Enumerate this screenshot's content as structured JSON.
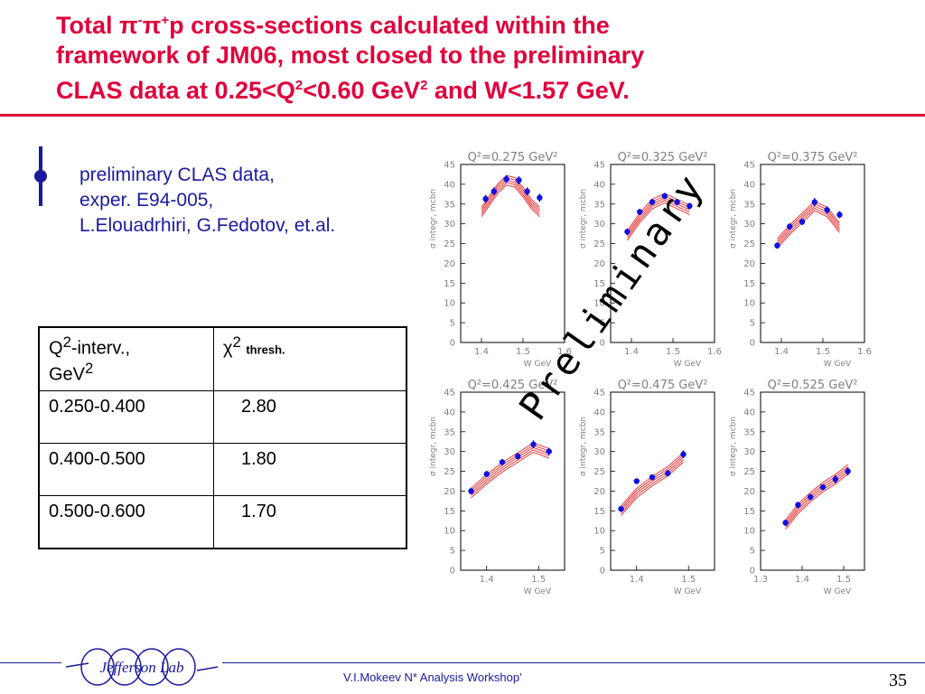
{
  "title": {
    "line1_pre": "Total ",
    "pi": "π",
    "minus": "-",
    "plus": "+",
    "line1_post": "p cross-sections calculated within the",
    "line2": "framework of JM06, most closed to the preliminary",
    "line3_a": "CLAS data at 0.25<Q",
    "sup2": "2",
    "line3_b": "<0.60 GeV",
    "line3_c": " and W<1.57 GeV."
  },
  "legend": {
    "line1": "preliminary CLAS data,",
    "line2": "exper. E94-005,",
    "line3": "L.Elouadrhiri, G.Fedotov, et.al.",
    "marker_color": "#1a1aa0"
  },
  "table": {
    "header_col1_a": "Q",
    "header_col1_sup": "2",
    "header_col1_b": "-interv.,",
    "header_col1_c": "GeV",
    "header_col1_sup2": "2",
    "header_col2_chi": "χ",
    "header_col2_sup": "2",
    "header_col2_sub": "thresh.",
    "rows": [
      {
        "interval": "0.250-0.400",
        "chi2": "2.80"
      },
      {
        "interval": "0.400-0.500",
        "chi2": "1.80"
      },
      {
        "interval": "0.500-0.600",
        "chi2": "1.70"
      }
    ]
  },
  "watermark": "Preliminary",
  "footer": {
    "logo_text": "Jefferson Lab",
    "credit": "V.I.Mokeev  N* Analysis Workshop'",
    "page": "35"
  },
  "colors": {
    "title": "#e0003c",
    "data_points": "#1010e0",
    "curves": "#e00000",
    "axis_labels": "#808080"
  },
  "chart_data": [
    {
      "type": "scatter",
      "title": "Q²=0.275 GeV²",
      "xlabel": "W GeV",
      "ylabel": "σ integr, mcbn",
      "xlim": [
        1.35,
        1.6
      ],
      "ylim": [
        0,
        45
      ],
      "xticks": [
        "1.4",
        "1.5",
        "1.6"
      ],
      "yticks": [
        "0",
        "5",
        "10",
        "15",
        "20",
        "25",
        "30",
        "35",
        "40",
        "45"
      ],
      "x": [
        1.41,
        1.43,
        1.46,
        1.49,
        1.51,
        1.54
      ],
      "y": [
        36.3,
        38.2,
        41.3,
        41.0,
        38.2,
        36.6
      ],
      "yerr": [
        1.0,
        1.0,
        1.0,
        1.0,
        1.0,
        1.0
      ],
      "curve_x": [
        1.4,
        1.42,
        1.44,
        1.46,
        1.48,
        1.5,
        1.52,
        1.54
      ],
      "curve_y": [
        33.0,
        36.0,
        39.0,
        41.0,
        40.5,
        38.0,
        35.0,
        33.0
      ]
    },
    {
      "type": "scatter",
      "title": "Q²=0.325 GeV²",
      "xlabel": "W GeV",
      "ylabel": "σ integr, mcbn",
      "xlim": [
        1.35,
        1.6
      ],
      "ylim": [
        0,
        45
      ],
      "xticks": [
        "1.4",
        "1.5",
        "1.6"
      ],
      "yticks": [
        "0",
        "5",
        "10",
        "15",
        "20",
        "25",
        "30",
        "35",
        "40",
        "45"
      ],
      "x": [
        1.39,
        1.42,
        1.45,
        1.48,
        1.51,
        1.54
      ],
      "y": [
        28.0,
        33.0,
        35.5,
        37.0,
        35.5,
        34.5
      ],
      "yerr": [
        0.8,
        0.8,
        0.8,
        0.8,
        0.8,
        0.8
      ],
      "curve_x": [
        1.39,
        1.42,
        1.45,
        1.48,
        1.51,
        1.54
      ],
      "curve_y": [
        27.0,
        31.5,
        35.0,
        36.5,
        35.0,
        33.5
      ]
    },
    {
      "type": "scatter",
      "title": "Q²=0.375 GeV²",
      "xlabel": "W GeV",
      "ylabel": "σ integr, mcbn",
      "xlim": [
        1.35,
        1.6
      ],
      "ylim": [
        0,
        45
      ],
      "xticks": [
        "1.4",
        "1.5",
        "1.6"
      ],
      "yticks": [
        "0",
        "5",
        "10",
        "15",
        "20",
        "25",
        "30",
        "35",
        "40",
        "45"
      ],
      "x": [
        1.39,
        1.42,
        1.45,
        1.48,
        1.51,
        1.54
      ],
      "y": [
        24.5,
        29.3,
        30.5,
        35.5,
        33.5,
        32.3
      ],
      "yerr": [
        0.8,
        0.8,
        0.8,
        1.0,
        0.9,
        0.9
      ],
      "curve_x": [
        1.39,
        1.42,
        1.45,
        1.48,
        1.51,
        1.54
      ],
      "curve_y": [
        25.0,
        28.5,
        31.5,
        34.5,
        33.0,
        29.0
      ]
    },
    {
      "type": "scatter",
      "title": "Q²=0.425 GeV²",
      "xlabel": "W GeV",
      "ylabel": "σ integr, mcbn",
      "xlim": [
        1.35,
        1.55
      ],
      "ylim": [
        0,
        45
      ],
      "xticks": [
        "1.4",
        "1.5"
      ],
      "yticks": [
        "0",
        "5",
        "10",
        "15",
        "20",
        "25",
        "30",
        "35",
        "40",
        "45"
      ],
      "x": [
        1.37,
        1.4,
        1.43,
        1.46,
        1.49,
        1.52
      ],
      "y": [
        20.0,
        24.3,
        27.3,
        28.8,
        31.8,
        30.0
      ],
      "yerr": [
        0.8,
        0.8,
        0.8,
        0.8,
        1.0,
        0.9
      ],
      "curve_x": [
        1.37,
        1.4,
        1.43,
        1.46,
        1.49,
        1.52
      ],
      "curve_y": [
        19.5,
        23.0,
        26.0,
        28.5,
        31.0,
        29.5
      ]
    },
    {
      "type": "scatter",
      "title": "Q²=0.475 GeV²",
      "xlabel": "W GeV",
      "ylabel": "σ integr, mcbn",
      "xlim": [
        1.35,
        1.55
      ],
      "ylim": [
        0,
        45
      ],
      "xticks": [
        "1.4",
        "1.5"
      ],
      "yticks": [
        "0",
        "5",
        "10",
        "15",
        "20",
        "25",
        "30",
        "35",
        "40",
        "45"
      ],
      "x": [
        1.37,
        1.4,
        1.43,
        1.46,
        1.49
      ],
      "y": [
        15.5,
        22.5,
        23.5,
        24.5,
        29.3
      ],
      "yerr": [
        0.6,
        0.7,
        0.7,
        0.8,
        1.0
      ],
      "curve_x": [
        1.37,
        1.4,
        1.43,
        1.46,
        1.49
      ],
      "curve_y": [
        15.0,
        19.5,
        22.5,
        25.0,
        28.5
      ]
    },
    {
      "type": "scatter",
      "title": "Q²=0.525 GeV²",
      "xlabel": "W GeV",
      "ylabel": "σ integr, mcbn",
      "xlim": [
        1.3,
        1.55
      ],
      "ylim": [
        0,
        45
      ],
      "xticks": [
        "1.3",
        "1.4",
        "1.5"
      ],
      "yticks": [
        "0",
        "5",
        "10",
        "15",
        "20",
        "25",
        "30",
        "35",
        "40",
        "45"
      ],
      "x": [
        1.36,
        1.39,
        1.42,
        1.45,
        1.48,
        1.51
      ],
      "y": [
        12.0,
        16.5,
        18.5,
        21.0,
        23.0,
        25.0
      ],
      "yerr": [
        0.8,
        0.8,
        0.8,
        0.8,
        1.0,
        1.0
      ],
      "curve_x": [
        1.36,
        1.39,
        1.42,
        1.45,
        1.48,
        1.51
      ],
      "curve_y": [
        11.5,
        15.5,
        18.5,
        21.0,
        23.0,
        25.5
      ]
    }
  ]
}
